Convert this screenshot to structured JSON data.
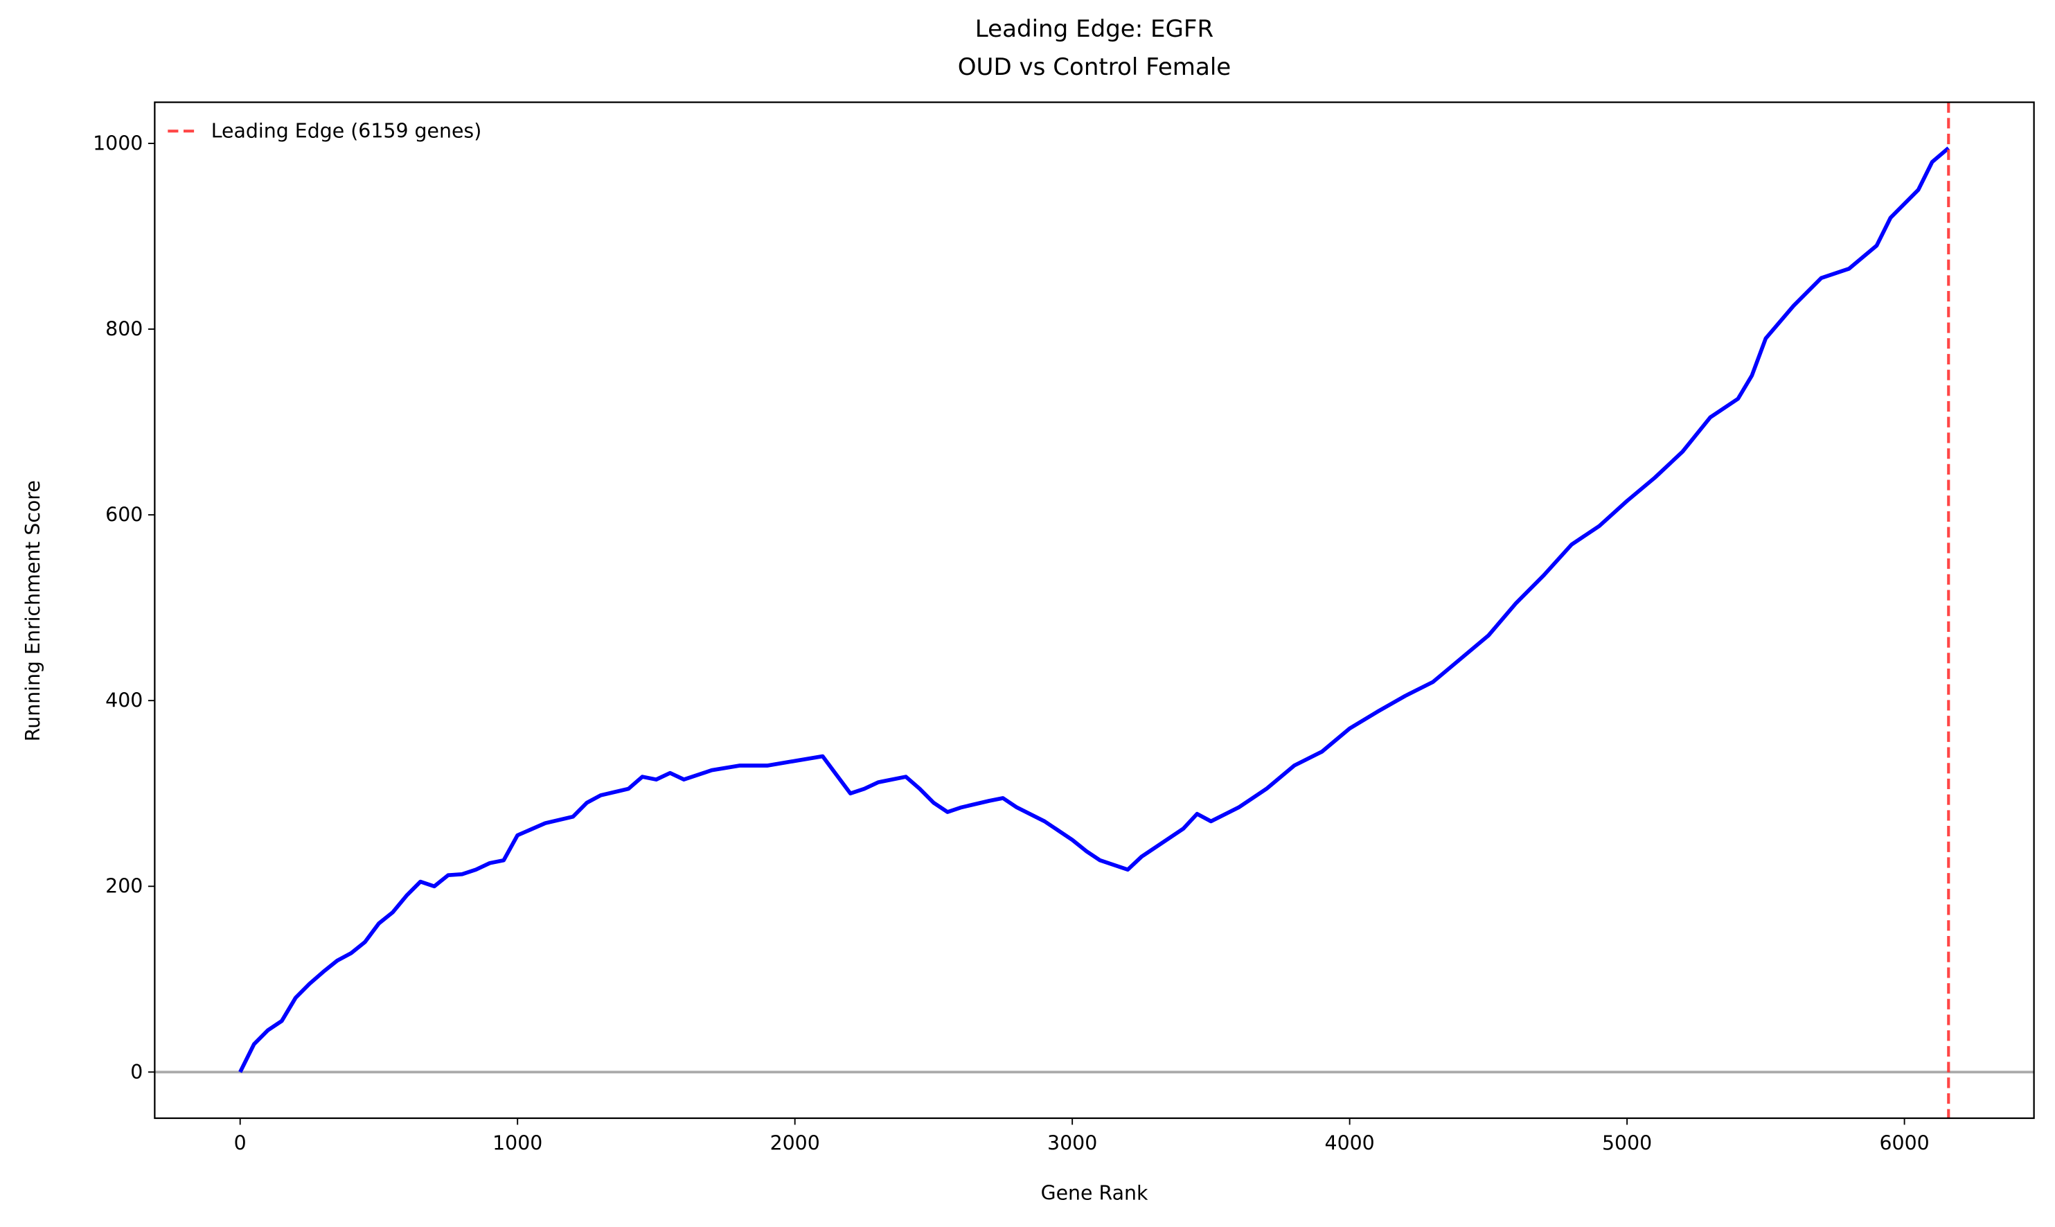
{
  "chart_data": {
    "type": "line",
    "title": "Leading Edge: EGFR",
    "subtitle": "OUD vs Control Female",
    "x_label": "Gene Rank",
    "y_label": "Running Enrichment Score",
    "x": [
      0,
      50,
      100,
      150,
      200,
      250,
      300,
      350,
      400,
      450,
      500,
      550,
      600,
      650,
      700,
      750,
      800,
      850,
      900,
      950,
      1000,
      1100,
      1200,
      1250,
      1300,
      1400,
      1450,
      1500,
      1550,
      1600,
      1700,
      1800,
      1900,
      2000,
      2100,
      2150,
      2200,
      2250,
      2300,
      2400,
      2450,
      2500,
      2550,
      2600,
      2700,
      2750,
      2800,
      2900,
      3000,
      3050,
      3100,
      3200,
      3250,
      3300,
      3400,
      3450,
      3500,
      3600,
      3700,
      3800,
      3900,
      4000,
      4100,
      4200,
      4300,
      4400,
      4500,
      4600,
      4700,
      4800,
      4900,
      5000,
      5100,
      5200,
      5300,
      5400,
      5450,
      5500,
      5600,
      5700,
      5800,
      5900,
      5950,
      6000,
      6050,
      6100,
      6159
    ],
    "series": [
      {
        "name": "Running Enrichment Score",
        "color": "#0000ff",
        "values": [
          0,
          30,
          45,
          55,
          80,
          95,
          108,
          120,
          128,
          140,
          160,
          172,
          190,
          205,
          200,
          212,
          213,
          218,
          225,
          228,
          255,
          268,
          275,
          290,
          298,
          305,
          318,
          315,
          322,
          315,
          325,
          330,
          330,
          335,
          340,
          320,
          300,
          305,
          312,
          318,
          305,
          290,
          280,
          285,
          292,
          295,
          285,
          270,
          250,
          238,
          228,
          218,
          232,
          242,
          262,
          278,
          270,
          285,
          305,
          330,
          345,
          370,
          388,
          405,
          420,
          445,
          470,
          505,
          535,
          568,
          588,
          615,
          640,
          668,
          705,
          725,
          750,
          790,
          825,
          855,
          865,
          890,
          920,
          935,
          950,
          980,
          995
        ]
      }
    ],
    "vline": {
      "x": 6159,
      "label": "Leading Edge (6159 genes)",
      "color": "#ff3333"
    },
    "hline": {
      "y": 0,
      "color": "#aaaaaa"
    },
    "legend": "upper left",
    "xlim": [
      -308,
      6467
    ],
    "ylim": [
      -49.7,
      1044.3
    ],
    "xticks": [
      0,
      1000,
      2000,
      3000,
      4000,
      5000,
      6000
    ],
    "yticks": [
      0,
      200,
      400,
      600,
      800,
      1000
    ]
  }
}
